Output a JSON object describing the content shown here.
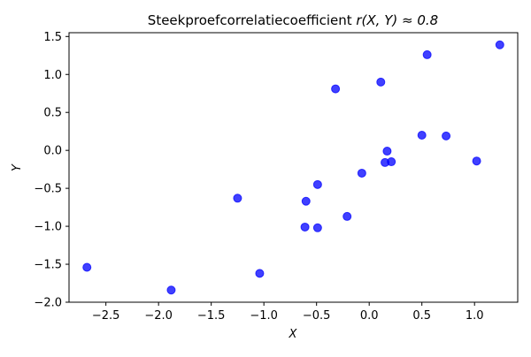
{
  "chart_data": {
    "type": "scatter",
    "title": {
      "prefix": "Steekproefcorrelatiecoefficient ",
      "math": "r(X, Y) ≈ 0.8"
    },
    "xlabel": "X",
    "ylabel": "Y",
    "xlim": [
      -2.85,
      1.41
    ],
    "ylim": [
      -2.0,
      1.55
    ],
    "xticks": [
      -2.5,
      -2.0,
      -1.5,
      -1.0,
      -0.5,
      0.0,
      0.5,
      1.0
    ],
    "xtick_labels": [
      "−2.5",
      "−2.0",
      "−1.5",
      "−1.0",
      "−0.5",
      "0.0",
      "0.5",
      "1.0"
    ],
    "yticks": [
      -2.0,
      -1.5,
      -1.0,
      -0.5,
      0.0,
      0.5,
      1.0,
      1.5
    ],
    "ytick_labels": [
      "−2.0",
      "−1.5",
      "−1.0",
      "−0.5",
      "0.0",
      "0.5",
      "1.0",
      "1.5"
    ],
    "grid": false,
    "marker_color": "#0000ff",
    "marker_alpha": 0.75,
    "points": [
      {
        "x": -2.68,
        "y": -1.54
      },
      {
        "x": -1.88,
        "y": -1.84
      },
      {
        "x": -1.25,
        "y": -0.63
      },
      {
        "x": -1.04,
        "y": -1.62
      },
      {
        "x": -0.61,
        "y": -1.01
      },
      {
        "x": -0.6,
        "y": -0.67
      },
      {
        "x": -0.49,
        "y": -1.02
      },
      {
        "x": -0.49,
        "y": -0.45
      },
      {
        "x": -0.32,
        "y": 0.81
      },
      {
        "x": -0.21,
        "y": -0.87
      },
      {
        "x": -0.07,
        "y": -0.3
      },
      {
        "x": 0.11,
        "y": 0.9
      },
      {
        "x": 0.15,
        "y": -0.16
      },
      {
        "x": 0.17,
        "y": -0.01
      },
      {
        "x": 0.21,
        "y": -0.15
      },
      {
        "x": 0.5,
        "y": 0.2
      },
      {
        "x": 0.55,
        "y": 1.26
      },
      {
        "x": 0.73,
        "y": 0.19
      },
      {
        "x": 1.02,
        "y": -0.14
      },
      {
        "x": 1.24,
        "y": 1.39
      }
    ]
  }
}
